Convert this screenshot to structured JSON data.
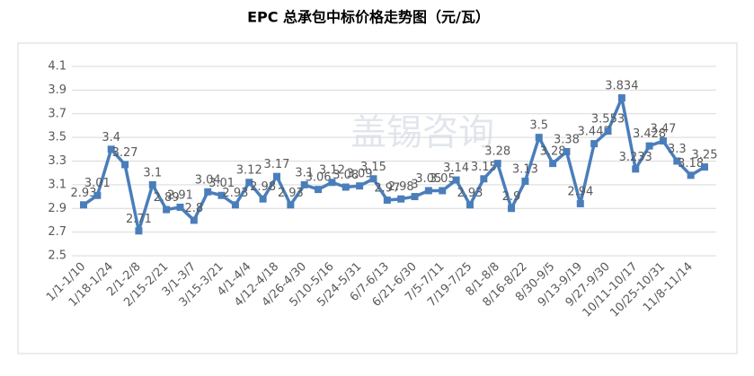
{
  "chart_data": {
    "type": "line",
    "title": "EPC 总承包中标价格走势图（元/瓦）",
    "watermark": "盖锡咨询",
    "categories": [
      "1/1-1/10",
      null,
      "1/18-1/24",
      null,
      "2/1-2/8",
      null,
      "2/15-2/21",
      null,
      "3/1-3/7",
      null,
      "3/15-3/21",
      null,
      "4/1-4/4",
      null,
      "4/12-4/18",
      null,
      "4/26-4/30",
      null,
      "5/10-5/16",
      null,
      "5/24-5/31",
      null,
      "6/7-6/13",
      null,
      "6/21-6/30",
      null,
      "7/5-7/11",
      null,
      "7/19-7/25",
      null,
      "8/1-8/8",
      null,
      "8/16-8/22",
      null,
      "8/30-9/5",
      null,
      "9/13-9/19",
      null,
      "9/27-9/30",
      null,
      "10/11-10/17",
      null,
      "10/25-10/31",
      null,
      "11/8-11/14",
      null
    ],
    "series": [
      {
        "color": "#4a7ebb",
        "values": [
          2.93,
          3.01,
          3.4,
          3.27,
          2.71,
          3.1,
          2.89,
          2.91,
          2.8,
          3.04,
          3.01,
          2.93,
          3.12,
          2.98,
          3.17,
          2.93,
          3.1,
          3.06,
          3.12,
          3.08,
          3.09,
          3.15,
          2.97,
          2.98,
          3.0,
          3.05,
          3.05,
          3.14,
          2.93,
          3.15,
          3.28,
          2.9,
          3.13,
          3.5,
          3.28,
          3.38,
          2.94,
          3.447,
          3.553,
          3.834,
          3.233,
          3.428,
          3.47,
          3.3,
          3.18,
          3.25
        ]
      }
    ],
    "ylim": [
      2.5,
      4.1
    ],
    "yticks": [
      2.5,
      2.7,
      2.9,
      3.1,
      3.3,
      3.5,
      3.7,
      3.9,
      4.1
    ],
    "grid": true
  }
}
